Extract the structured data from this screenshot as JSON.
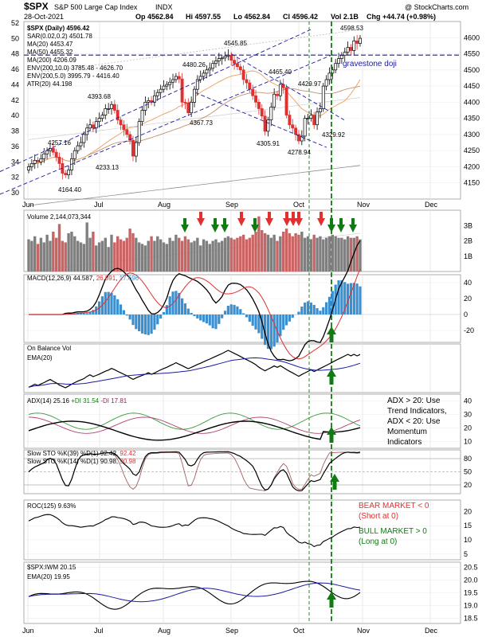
{
  "header": {
    "symbol": "$SPX",
    "name": "S&P 500 Large Cap Index",
    "exchange": "INDX",
    "watermark": "@ StockCharts.com",
    "date": "28-Oct-2021",
    "open": "Op 4562.84",
    "high": "Hi 4597.55",
    "low": "Lo 4562.84",
    "close": "Cl 4596.42",
    "volume": "Vol 2.1B",
    "change": "Chg +44.74 (+0.98%)"
  },
  "colors": {
    "up": "#000000",
    "down": "#e03030",
    "ma20": "#e8a060",
    "ma50": "#c09070",
    "ma200": "#909090",
    "trend": "#1a1aa0",
    "signal": "#127a12",
    "volume_up": "#7f7f7f",
    "volume_down": "#c86464",
    "histogram": "#3a8fd0",
    "ema": "#1a1aa0"
  },
  "x_axis": {
    "labels": [
      "Jun",
      "Jul",
      "Aug",
      "Sep",
      "Oct",
      "Nov",
      "Dec"
    ]
  },
  "chart_data": [
    {
      "type": "candlestick",
      "name": "price",
      "legend": [
        "$SPX (Daily) 4596.42",
        "SAR(0.02,0.2) 4501.78",
        "MA(20) 4453.47",
        "MA(50) 4455.32",
        "MA(200) 4206.09",
        "ENV(200,10.0) 3785.48 - 4626.70",
        "ENV(200,5.0) 3995.79 - 4416.40",
        "ATR(20) 44.198"
      ],
      "ylim": [
        4100,
        4650
      ],
      "right_ticks": [
        4150,
        4200,
        4250,
        4300,
        4350,
        4400,
        4450,
        4500,
        4550,
        4600
      ],
      "left_ticks": [
        30,
        32,
        34,
        36,
        38,
        40,
        42,
        44,
        46,
        48,
        50,
        52
      ],
      "close": [
        4200,
        4210,
        4220,
        4215,
        4225,
        4240,
        4250,
        4257,
        4245,
        4230,
        4210,
        4180,
        4175,
        4190,
        4225,
        4250,
        4265,
        4275,
        4300,
        4320,
        4330,
        4320,
        4340,
        4350,
        4360,
        4380,
        4380,
        4393,
        4375,
        4345,
        4330,
        4315,
        4300,
        4282,
        4233,
        4275,
        4340,
        4375,
        4400,
        4405,
        4400,
        4420,
        4430,
        4440,
        4450,
        4455,
        4462,
        4470,
        4480,
        4472,
        4400,
        4398,
        4367,
        4400,
        4440,
        4470,
        4480,
        4490,
        4500,
        4505,
        4520,
        4528,
        4535,
        4537,
        4543,
        4546,
        4530,
        4520,
        4510,
        4500,
        4470,
        4460,
        4440,
        4420,
        4400,
        4380,
        4357,
        4310,
        4345,
        4385,
        4425,
        4420,
        4455,
        4445,
        4360,
        4330,
        4320,
        4300,
        4280,
        4295,
        4350,
        4350,
        4360,
        4330,
        4370,
        4380,
        4450,
        4470,
        4490,
        4500,
        4520,
        4535,
        4545,
        4555,
        4570,
        4560,
        4590,
        4582,
        4598
      ],
      "annotations": [
        {
          "label": "4545.85",
          "value": 4545.85
        },
        {
          "label": "4480.26",
          "value": 4480.26
        },
        {
          "label": "4465.40",
          "value": 4465.4
        },
        {
          "label": "4429.97",
          "value": 4429.97
        },
        {
          "label": "4393.68",
          "value": 4393.68
        },
        {
          "label": "4367.73",
          "value": 4367.73
        },
        {
          "label": "4257.16",
          "value": 4257.16
        },
        {
          "label": "4305.91",
          "value": 4305.91
        },
        {
          "label": "4329.92",
          "value": 4329.92
        },
        {
          "label": "4278.94",
          "value": 4278.94
        },
        {
          "label": "4233.13",
          "value": 4233.13
        },
        {
          "label": "4164.40",
          "value": 4164.4
        },
        {
          "label": "4598.53",
          "value": 4598.53
        }
      ],
      "note": "gravestone doji",
      "support_level": 4546
    },
    {
      "type": "bar",
      "name": "volume",
      "legend": "Volume 2,144,073,344",
      "right_ticks": [
        "1B",
        "2B",
        "3B"
      ],
      "ylim": [
        0,
        4
      ],
      "values": [
        2.1,
        2.0,
        2.3,
        1.8,
        2.2,
        1.9,
        2.4,
        2.0,
        2.6,
        2.2,
        3.1,
        2.0,
        1.9,
        2.5,
        2.6,
        2.3,
        2.0,
        1.9,
        1.8,
        3.2,
        2.2,
        2.6,
        1.7,
        1.9,
        2.0,
        2.2,
        1.6,
        2.4,
        1.9,
        2.3,
        2.1,
        2.0,
        2.2,
        2.8,
        2.5,
        2.2,
        1.9,
        1.8,
        1.7,
        2.0,
        2.3,
        2.0,
        2.3,
        2.1,
        1.9,
        1.8,
        2.2,
        2.0,
        2.4,
        2.2,
        2.0,
        2.3,
        2.1,
        1.9,
        2.0,
        2.2,
        1.7,
        2.1,
        2.0,
        1.8,
        2.0,
        2.1,
        1.9,
        2.0,
        2.2,
        2.3,
        2.2,
        2.1,
        2.2,
        2.3,
        2.4,
        2.1,
        2.2,
        2.4,
        2.6,
        3.6,
        2.7,
        2.5,
        2.4,
        2.2,
        2.4,
        2.0,
        2.3,
        2.6,
        2.8,
        2.5,
        2.3,
        2.5,
        2.4,
        2.6,
        2.2,
        2.3,
        2.1,
        2.4,
        2.2,
        2.3,
        2.1,
        2.2,
        2.3,
        2.4,
        2.3,
        2.2,
        2.2,
        2.1,
        2.3,
        2.2,
        2.2,
        2.3,
        2.1
      ]
    },
    {
      "type": "line",
      "name": "macd",
      "legend": [
        "MACD(12,26,9)",
        "44.587",
        "26.891",
        "17.696"
      ],
      "right_ticks": [
        -20,
        0,
        20,
        40
      ],
      "ylim": [
        -35,
        50
      ]
    },
    {
      "type": "line",
      "name": "obv",
      "legend": [
        "On Balance Vol",
        "EMA(20)"
      ]
    },
    {
      "type": "line",
      "name": "adx",
      "legend": [
        "ADX(14)",
        "25.16",
        "+DI 31.54",
        "-DI 17.81"
      ],
      "right_ticks": [
        10,
        20,
        30,
        40
      ],
      "ylim": [
        5,
        45
      ],
      "side_note": [
        "ADX > 20: Use",
        "Trend Indicators,",
        "ADX < 20: Use",
        "Momentum",
        "Indicators"
      ]
    },
    {
      "type": "line",
      "name": "stochastic",
      "legend": [
        "Slow STO %K(39) %D(1)",
        "92.42",
        "92.42",
        "Slow STO %K(14) %D(1)",
        "90.98",
        "90.98"
      ],
      "right_ticks": [
        20,
        50,
        80
      ],
      "ylim": [
        0,
        100
      ]
    },
    {
      "type": "line",
      "name": "roc",
      "legend": "ROC(125) 9.63%",
      "right_ticks": [
        5,
        10,
        15,
        20
      ],
      "ylim": [
        3,
        24
      ],
      "side_note": [
        "BEAR MARKET < 0",
        "(Short at 0)",
        "BULL MARKET > 0",
        "(Long at 0)"
      ]
    },
    {
      "type": "line",
      "name": "ratio",
      "legend": [
        "$SPX:IWM 20.15",
        "EMA(20) 19.95"
      ],
      "right_ticks": [
        18.5,
        19.0,
        19.5,
        20.0,
        20.5
      ],
      "ylim": [
        18.3,
        20.7
      ]
    }
  ]
}
